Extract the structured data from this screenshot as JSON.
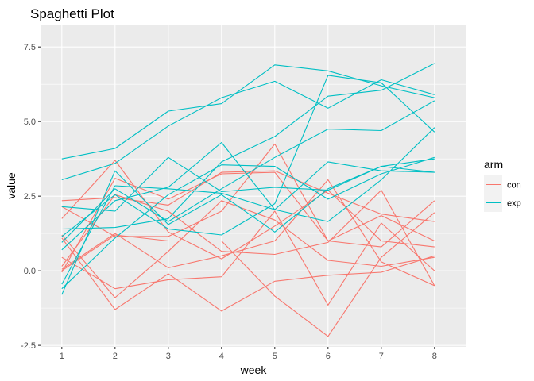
{
  "chart_data": {
    "type": "line",
    "title": "Spaghetti Plot",
    "xlabel": "week",
    "ylabel": "value",
    "x": [
      1,
      2,
      3,
      4,
      5,
      6,
      7,
      8
    ],
    "x_ticks": [
      "1",
      "2",
      "3",
      "4",
      "5",
      "6",
      "7",
      "8"
    ],
    "y_ticks": [
      -2.5,
      0.0,
      2.5,
      5.0,
      7.5
    ],
    "y_tick_labels": [
      "-2.5",
      "0.0",
      "2.5",
      "5.0",
      "7.5"
    ],
    "xlim": [
      0.6,
      8.6
    ],
    "ylim": [
      -2.55,
      8.25
    ],
    "grid": true,
    "legend": {
      "title": "arm",
      "position": "right",
      "entries": [
        {
          "key": "con",
          "label": "con",
          "color": "#F8766D"
        },
        {
          "key": "exp",
          "label": "exp",
          "color": "#00BFC4"
        }
      ]
    },
    "series": [
      {
        "arm": "con",
        "values": [
          2.35,
          2.45,
          2.2,
          3.3,
          3.35,
          2.6,
          1.9,
          1.65
        ]
      },
      {
        "arm": "con",
        "values": [
          1.75,
          3.7,
          1.3,
          0.4,
          1.5,
          2.7,
          1.0,
          0.8
        ]
      },
      {
        "arm": "con",
        "values": [
          2.15,
          1.15,
          1.15,
          2.0,
          4.25,
          1.0,
          1.85,
          1.0
        ]
      },
      {
        "arm": "con",
        "values": [
          0.15,
          2.55,
          2.0,
          0.65,
          0.55,
          0.95,
          2.7,
          -0.5
        ]
      },
      {
        "arm": "con",
        "values": [
          -0.05,
          3.1,
          2.4,
          3.25,
          3.3,
          1.0,
          0.8,
          2.35
        ]
      },
      {
        "arm": "con",
        "values": [
          1.2,
          -0.9,
          0.65,
          2.35,
          1.7,
          0.35,
          0.15,
          0.45
        ]
      },
      {
        "arm": "con",
        "values": [
          1.1,
          -1.3,
          -0.1,
          -1.35,
          -0.35,
          -0.15,
          -0.05,
          0.5
        ]
      },
      {
        "arm": "con",
        "values": [
          0.45,
          -0.6,
          -0.3,
          -0.2,
          2.0,
          -1.15,
          1.6,
          0.0
        ]
      },
      {
        "arm": "con",
        "values": [
          0.05,
          1.25,
          0.1,
          0.5,
          1.0,
          3.05,
          0.3,
          -0.5
        ]
      },
      {
        "arm": "con",
        "values": [
          0.0,
          1.2,
          1.0,
          1.0,
          -0.85,
          -2.2,
          0.45,
          1.95
        ]
      },
      {
        "arm": "exp",
        "values": [
          3.75,
          4.1,
          5.35,
          5.6,
          6.9,
          6.7,
          6.2,
          5.8
        ]
      },
      {
        "arm": "exp",
        "values": [
          3.05,
          3.6,
          4.85,
          5.8,
          6.35,
          5.45,
          6.4,
          5.9
        ]
      },
      {
        "arm": "exp",
        "values": [
          2.15,
          2.0,
          3.8,
          2.65,
          2.8,
          2.7,
          3.5,
          3.75
        ]
      },
      {
        "arm": "exp",
        "values": [
          1.4,
          1.45,
          1.75,
          3.65,
          4.5,
          5.85,
          6.05,
          6.95
        ]
      },
      {
        "arm": "exp",
        "values": [
          1.15,
          2.55,
          1.4,
          1.2,
          2.25,
          6.55,
          6.3,
          4.65
        ]
      },
      {
        "arm": "exp",
        "values": [
          0.95,
          2.75,
          1.65,
          2.75,
          3.8,
          4.75,
          4.7,
          5.7
        ]
      },
      {
        "arm": "exp",
        "values": [
          0.7,
          2.35,
          2.8,
          4.3,
          2.05,
          1.65,
          3.05,
          4.8
        ]
      },
      {
        "arm": "exp",
        "values": [
          -0.45,
          2.85,
          2.75,
          2.6,
          2.05,
          3.65,
          3.35,
          3.3
        ]
      },
      {
        "arm": "exp",
        "values": [
          -0.8,
          3.35,
          1.55,
          2.55,
          1.3,
          2.75,
          3.5,
          3.3
        ]
      },
      {
        "arm": "exp",
        "values": [
          -0.6,
          1.1,
          2.55,
          3.55,
          3.5,
          2.4,
          3.25,
          3.8
        ]
      }
    ]
  }
}
